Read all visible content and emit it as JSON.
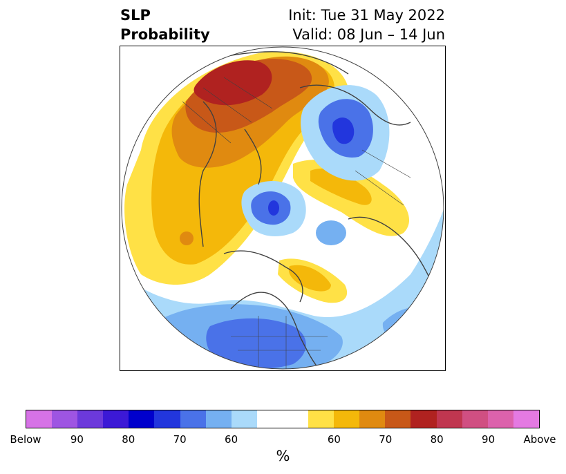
{
  "title": {
    "left_line1": "SLP",
    "left_line2": "Probability",
    "right_line1": "Init: Tue 31 May 2022",
    "right_line2": "Valid: 08 Jun – 14 Jun"
  },
  "colorbar": {
    "colors": [
      "#d672e6",
      "#9e55e2",
      "#6c39db",
      "#3c19d6",
      "#0000cc",
      "#2236dd",
      "#4a72e8",
      "#75b0f1",
      "#aadafa",
      "#ffffff",
      "#ffe146",
      "#f4b80a",
      "#e08a10",
      "#c85818",
      "#b02220",
      "#c03650",
      "#d04f82",
      "#dc62ac",
      "#e47ae2"
    ],
    "tick_labels": [
      "Below",
      "90",
      "80",
      "70",
      "60",
      "60",
      "70",
      "80",
      "90",
      "Above"
    ],
    "unit_label": "%"
  },
  "map": {
    "projection": "north-polar-stereographic",
    "regions": [
      {
        "name": "eurasia-above-outer",
        "category": "60"
      },
      {
        "name": "europe-above-core",
        "category": "80"
      },
      {
        "name": "pacific-above",
        "category": "60"
      },
      {
        "name": "canada-above",
        "category": "60"
      },
      {
        "name": "siberia-above",
        "category": "60"
      },
      {
        "name": "barents-below",
        "category": "70"
      },
      {
        "name": "east-asia-below",
        "category": "70"
      },
      {
        "name": "usa-below",
        "category": "70"
      },
      {
        "name": "atlantic-below",
        "category": "60"
      }
    ]
  }
}
